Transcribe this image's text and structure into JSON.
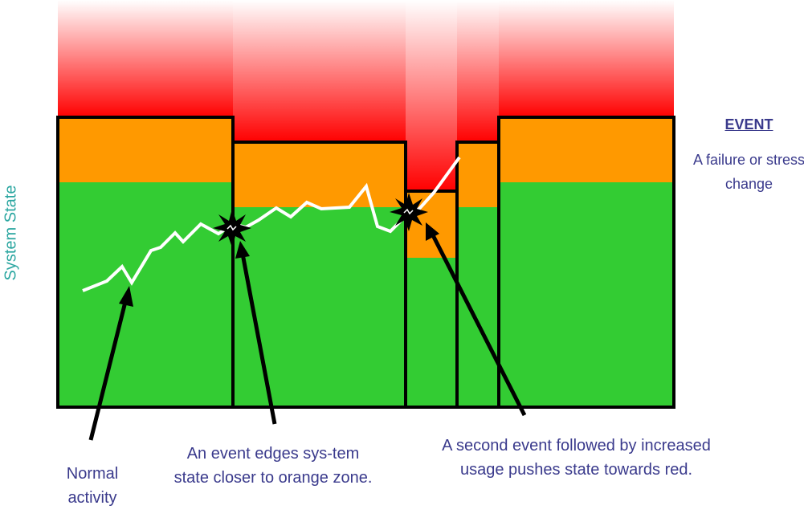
{
  "y_axis_label": "System State",
  "legend": {
    "title": "EVENT",
    "description": "A failure or stress change"
  },
  "captions": {
    "normal": "Normal activity",
    "first_event": "An event edges sys-tem state closer to orange zone.",
    "second_event": "A second event followed by increased usage pushes state towards red."
  },
  "colors": {
    "green": "#33cc33",
    "orange": "#ff9900",
    "red": "#ff0000",
    "line": "#ffffff",
    "label_teal": "#2aa6a0",
    "text_blue": "#3a3a8c"
  },
  "icons": {
    "event_marker": "starburst-icon"
  }
}
